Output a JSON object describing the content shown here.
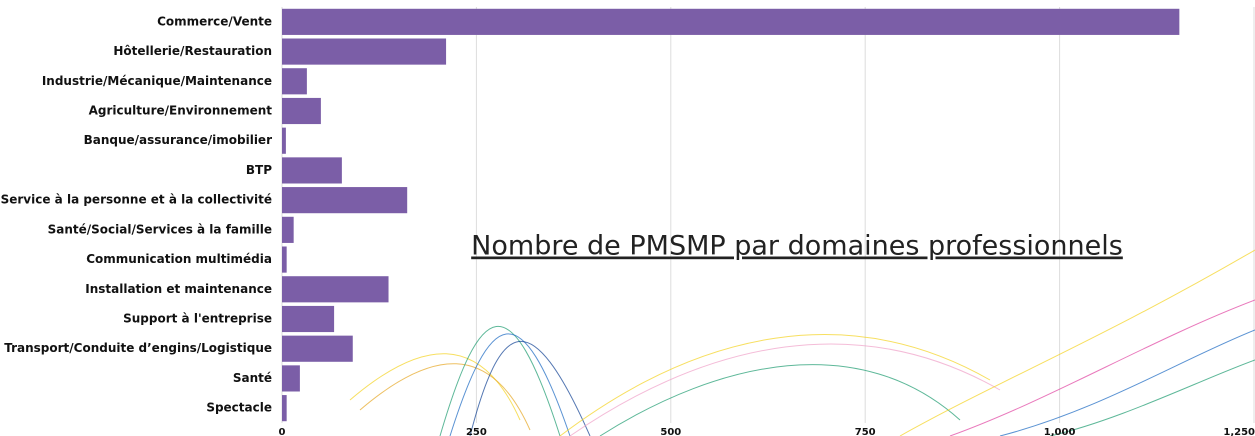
{
  "chart_data": {
    "type": "bar",
    "orientation": "horizontal",
    "title": "Nombre de PMSMP par domaines professionnels",
    "categories": [
      "Commerce/Vente",
      "Hôtellerie/Restauration",
      "Industrie/Mécanique/Maintenance",
      "Agriculture/Environnement",
      "Banque/assurance/imobilier",
      "BTP",
      "Service à la personne et à la collectivité",
      "Santé/Social/Services à la famille",
      "Communication multimédia",
      "Installation et maintenance",
      "Support à l'entreprise",
      "Transport/Conduite d’engins/Logistique",
      "Santé",
      "Spectacle"
    ],
    "values": [
      1154,
      211,
      32,
      50,
      5,
      77,
      161,
      15,
      6,
      137,
      67,
      91,
      23,
      6
    ],
    "color": "#7b5ea7",
    "xlim": [
      0,
      1250
    ],
    "xticks": [
      0,
      250,
      500,
      750,
      {
        "value": 1000,
        "label": "1,000"
      },
      {
        "value": 1250,
        "label": "1,250"
      }
    ],
    "grid": true
  }
}
